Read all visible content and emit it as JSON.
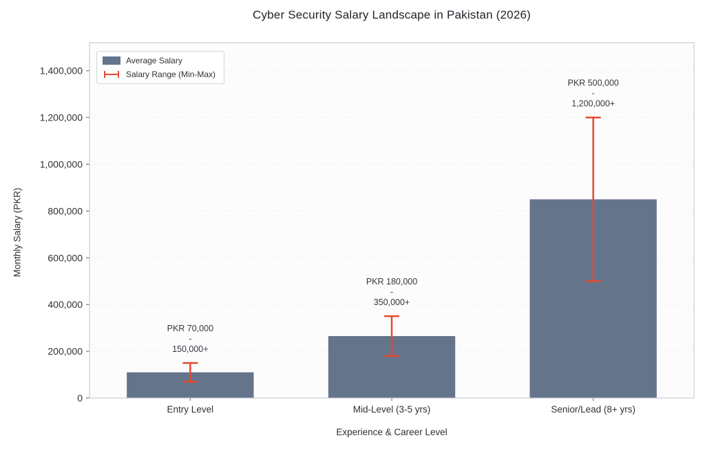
{
  "chart_data": {
    "type": "bar",
    "title": "Cyber Security Salary Landscape in Pakistan (2026)",
    "xlabel": "Experience & Career Level",
    "ylabel": "Monthly Salary (PKR)",
    "categories": [
      "Entry Level",
      "Mid-Level (3-5 yrs)",
      "Senior/Lead (8+ yrs)"
    ],
    "series": [
      {
        "name": "Average Salary",
        "values": [
          110000,
          265000,
          850000
        ]
      }
    ],
    "error_bars": {
      "name": "Salary Range (Min-Max)",
      "min": [
        70000,
        180000,
        500000
      ],
      "max": [
        150000,
        350000,
        1200000
      ]
    },
    "annotations": [
      [
        "PKR 70,000",
        "-",
        "150,000+"
      ],
      [
        "PKR 180,000",
        "-",
        "350,000+"
      ],
      [
        "PKR 500,000",
        "-",
        "1,200,000+"
      ]
    ],
    "ylim": [
      0,
      1520000
    ],
    "yticks": [
      0,
      200000,
      400000,
      600000,
      800000,
      1000000,
      1200000,
      1400000
    ],
    "grid": true,
    "legend_position": "upper left",
    "colors": {
      "bar": "#64748b",
      "error": "#e5492f",
      "grid": "#ebebf0",
      "axis_text": "#2d3136",
      "border": "#c9cdd3",
      "plot_bg": "#fcfcfd"
    }
  }
}
